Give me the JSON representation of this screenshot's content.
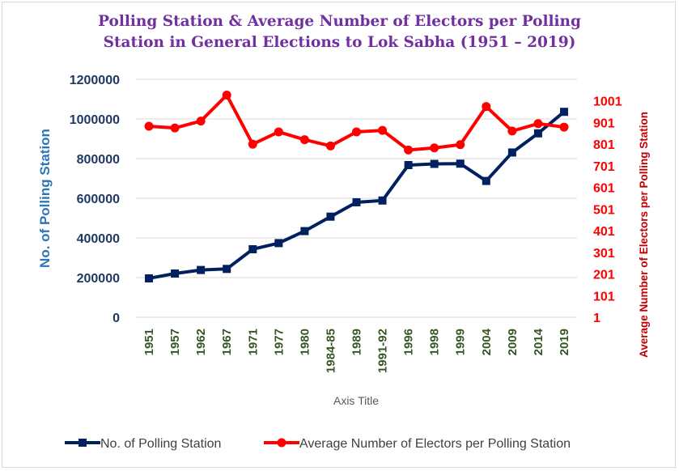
{
  "chart_data": {
    "type": "line",
    "title_line1": "Polling Station & Average Number of Electors per Polling",
    "title_line2": "Station in General Elections to Lok Sabha (1951 – 2019)",
    "xlabel": "Axis Title",
    "ylabel_left": "No. of Polling Station",
    "ylabel_right": "Average Number of Electors per Polling Station",
    "categories": [
      "1951",
      "1957",
      "1962",
      "1967",
      "1971",
      "1977",
      "1980",
      "1984-85",
      "1989",
      "1991-92",
      "1996",
      "1998",
      "1999",
      "2004",
      "2009",
      "2014",
      "2019"
    ],
    "y_left": {
      "min": 0,
      "max": 1200000,
      "ticks": [
        "0",
        "200000",
        "400000",
        "600000",
        "800000",
        "1000000",
        "1200000"
      ]
    },
    "y_right": {
      "min": 1,
      "max": 1101,
      "ticks": [
        "1",
        "101",
        "201",
        "301",
        "401",
        "501",
        "601",
        "701",
        "801",
        "901",
        "1001"
      ]
    },
    "grid": true,
    "legend_position": "bottom",
    "series": [
      {
        "name": "No. of Polling Station",
        "axis": "left",
        "color": "#002060",
        "marker": "square",
        "values": [
          196084,
          220478,
          238355,
          243693,
          342918,
          373908,
          434442,
          507317,
          579810,
          588714,
          767462,
          773494,
          774607,
          687402,
          830866,
          927553,
          1035918
        ]
      },
      {
        "name": "Average Number of Electors per Polling Station",
        "axis": "right",
        "color": "#ff0000",
        "marker": "circle",
        "values": [
          884,
          876,
          908,
          1028,
          801,
          858,
          822,
          793,
          858,
          865,
          774,
          784,
          799,
          975,
          862,
          896,
          880
        ]
      }
    ]
  }
}
